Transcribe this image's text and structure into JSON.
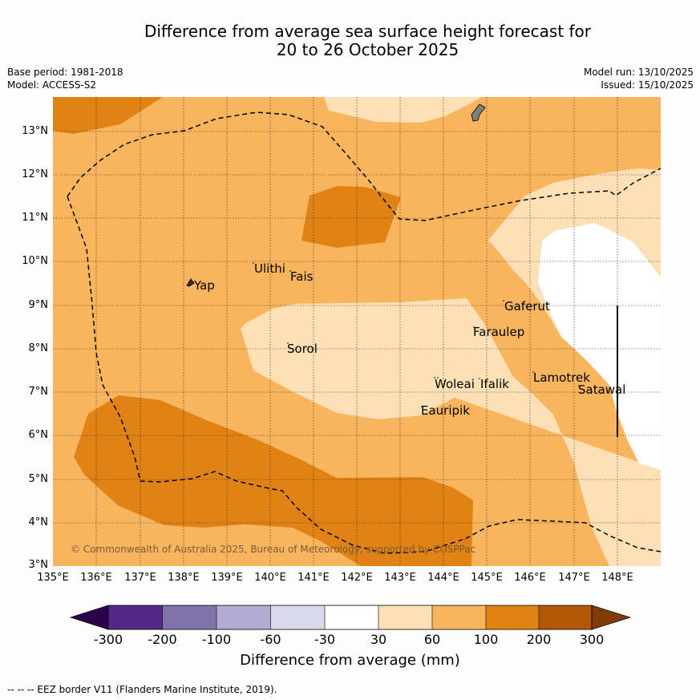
{
  "header": {
    "title_line1": "Difference from average sea surface height forecast for",
    "title_line2": "20 to 26 October 2025",
    "base_period": "Base period: 1981-2018",
    "model": "Model: ACCESS-S2",
    "model_run": "Model run: 13/10/2025",
    "issued": "Issued: 15/10/2025"
  },
  "map": {
    "lat_labels": [
      "13°N",
      "12°N",
      "11°N",
      "10°N",
      "9°N",
      "8°N",
      "7°N",
      "6°N",
      "5°N",
      "4°N",
      "3°N"
    ],
    "lon_labels": [
      "135°E",
      "136°E",
      "137°E",
      "138°E",
      "139°E",
      "140°E",
      "141°E",
      "142°E",
      "143°E",
      "144°E",
      "145°E",
      "146°E",
      "147°E",
      "148°E"
    ],
    "places": {
      "yap": "Yap",
      "ulithi": "Ulithi",
      "fais": "Fais",
      "sorol": "Sorol",
      "gaferut": "Gaferut",
      "faraulep": "Faraulep",
      "woleai": "Woleai",
      "ifalik": "Ifalik",
      "lamotrek": "Lamotrek",
      "satawal": "Satawal",
      "eauripik": "Eauripik"
    },
    "copyright": "© Commonwealth of Australia 2025, Bureau of Meteorology, supported by COSPPac",
    "colors": {
      "band_30_60": "#fde0b6",
      "band_60_100": "#f9b55e",
      "band_100_200": "#e08214",
      "land": "#7f7f7f"
    }
  },
  "colorbar": {
    "ticks": [
      "-300",
      "-200",
      "-100",
      "-60",
      "-30",
      "30",
      "60",
      "100",
      "200",
      "300"
    ],
    "label": "Difference from average (mm)",
    "colors": [
      "#2d004b",
      "#542788",
      "#8073ac",
      "#b2abd2",
      "#d8daeb",
      "#ffffff",
      "#fde0b6",
      "#f9b55e",
      "#e08214",
      "#b35806",
      "#7f3b08"
    ]
  },
  "footnote": "--  --  -- EEZ border V11 (Flanders Marine Institute, 2019)."
}
